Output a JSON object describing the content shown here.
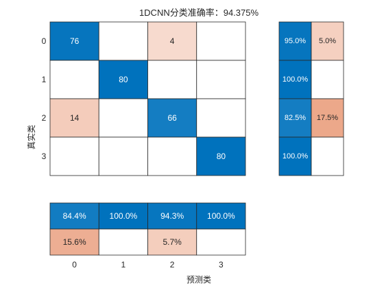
{
  "chart_data": {
    "type": "heatmap",
    "title": "1DCNN分类准确率：94.375%",
    "xlabel": "预测类",
    "ylabel": "真实类",
    "classes": [
      "0",
      "1",
      "2",
      "3"
    ],
    "matrix": [
      [
        76,
        0,
        4,
        0
      ],
      [
        0,
        80,
        0,
        0
      ],
      [
        14,
        0,
        66,
        0
      ],
      [
        0,
        0,
        0,
        80
      ]
    ],
    "row_summary": [
      [
        "95.0%",
        "5.0%"
      ],
      [
        "100.0%",
        ""
      ],
      [
        "82.5%",
        "17.5%"
      ],
      [
        "100.0%",
        ""
      ]
    ],
    "row_summary_values": [
      [
        95.0,
        5.0
      ],
      [
        100.0,
        0
      ],
      [
        82.5,
        17.5
      ],
      [
        100.0,
        0
      ]
    ],
    "column_summary": [
      [
        "84.4%",
        "100.0%",
        "94.3%",
        "100.0%"
      ],
      [
        "15.6%",
        "",
        "5.7%",
        ""
      ]
    ],
    "column_summary_values": [
      [
        84.4,
        100.0,
        94.3,
        100.0
      ],
      [
        15.6,
        0,
        5.7,
        0
      ]
    ],
    "colors": {
      "correct": "#0072bd",
      "incorrect": "#d95319",
      "empty": "#ffffff",
      "grid": "#262626",
      "text_dark": "#262626",
      "text_light": "#ffffff"
    }
  }
}
